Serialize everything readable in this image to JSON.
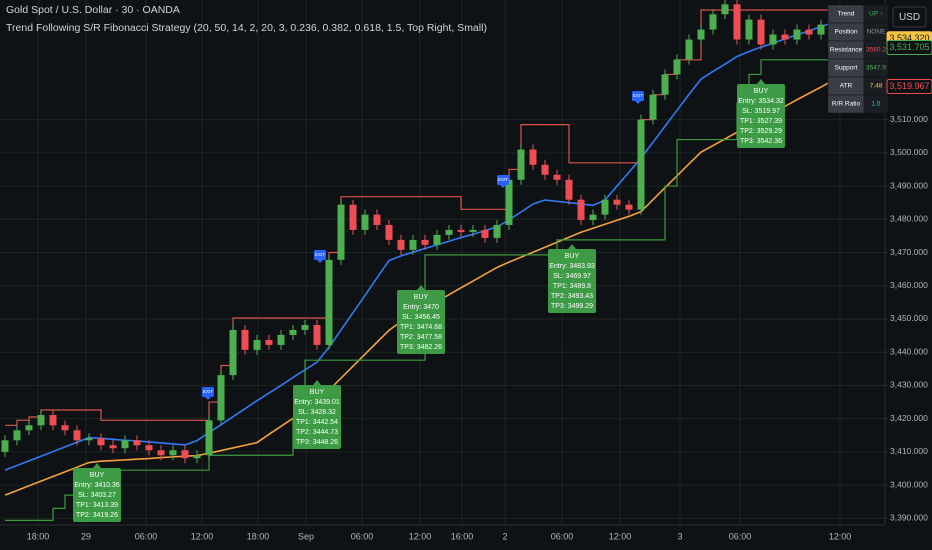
{
  "chart_data": {
    "type": "candlestick",
    "title": "Gold Spot / U.S. Dollar · 30 · OANDA",
    "subtitle": "Trend Following S/R Fibonacci Strategy (20, 50, 14, 2, 20, 3, 0.236, 0.382, 0.618, 1.5, Top Right, Small)",
    "currency": "USD",
    "grid": true,
    "up_color": "#4caf50",
    "down_color": "#ef4d56",
    "ylim": [
      3388,
      3546
    ],
    "yticks": [
      {
        "value": 3390,
        "label": "3,390.000"
      },
      {
        "value": 3400,
        "label": "3,400.000"
      },
      {
        "value": 3410,
        "label": "3,410.000"
      },
      {
        "value": 3420,
        "label": "3,420.000"
      },
      {
        "value": 3430,
        "label": "3,430.000"
      },
      {
        "value": 3440,
        "label": "3,440.000"
      },
      {
        "value": 3450,
        "label": "3,450.000"
      },
      {
        "value": 3460,
        "label": "3,460.000"
      },
      {
        "value": 3470,
        "label": "3,470.000"
      },
      {
        "value": 3480,
        "label": "3,480.000"
      },
      {
        "value": 3490,
        "label": "3,490.000"
      },
      {
        "value": 3500,
        "label": "3,500.000"
      },
      {
        "value": 3510,
        "label": "3,510.000"
      }
    ],
    "xticks": [
      {
        "value": 2.75,
        "label": "18:00"
      },
      {
        "value": 6.75,
        "label": "29"
      },
      {
        "value": 11.75,
        "label": "06:00"
      },
      {
        "value": 16.42,
        "label": "12:00"
      },
      {
        "value": 21.08,
        "label": "18:00"
      },
      {
        "value": 25.08,
        "label": "Sep"
      },
      {
        "value": 29.75,
        "label": "06:00"
      },
      {
        "value": 34.58,
        "label": "12:00"
      },
      {
        "value": 38.08,
        "label": "16:00"
      },
      {
        "value": 41.67,
        "label": "2"
      },
      {
        "value": 46.42,
        "label": "06:00"
      },
      {
        "value": 51.25,
        "label": "12:00"
      },
      {
        "value": 56.25,
        "label": "3"
      },
      {
        "value": 61.25,
        "label": "06:00"
      },
      {
        "value": 69.58,
        "label": "12:00"
      }
    ],
    "open": [
      3410.0,
      3413.5,
      3416.5,
      3418.0,
      3421.1,
      3418.0,
      3416.5,
      3413.5,
      3414.1,
      3412.0,
      3411.1,
      3413.5,
      3412.0,
      3410.5,
      3409.0,
      3410.5,
      3408.1,
      3409.0,
      3419.5,
      3433.1,
      3446.7,
      3440.7,
      3443.7,
      3442.2,
      3445.2,
      3446.7,
      3448.2,
      3442.2,
      3467.8,
      3484.4,
      3476.8,
      3481.4,
      3478.3,
      3473.8,
      3470.8,
      3473.8,
      3472.3,
      3475.3,
      3476.8,
      3476.2,
      3476.8,
      3474.4,
      3478.3,
      3491.9,
      3501.0,
      3496.4,
      3493.4,
      3491.9,
      3485.9,
      3479.8,
      3481.4,
      3485.9,
      3484.4,
      3482.9,
      3510.0,
      3517.5,
      3523.6,
      3528.1,
      3534.1,
      3537.1,
      3541.7,
      3544.7,
      3534.1,
      3540.1,
      3532.6,
      3535.6,
      3534.1,
      3537.1,
      3535.6,
      3538.6,
      3540.1,
      3537.1
    ],
    "high": [
      3415.0,
      3418.0,
      3419.5,
      3422.6,
      3422.6,
      3419.5,
      3418.0,
      3415.6,
      3415.6,
      3413.5,
      3415.0,
      3415.0,
      3413.5,
      3412.0,
      3412.0,
      3412.0,
      3410.5,
      3421.0,
      3434.6,
      3448.2,
      3448.2,
      3445.2,
      3445.2,
      3446.7,
      3448.2,
      3449.7,
      3449.7,
      3469.3,
      3485.9,
      3485.9,
      3482.9,
      3482.9,
      3479.8,
      3475.3,
      3475.3,
      3475.3,
      3476.8,
      3478.3,
      3478.3,
      3478.3,
      3478.3,
      3479.8,
      3493.4,
      3502.5,
      3502.5,
      3497.9,
      3494.9,
      3493.4,
      3487.4,
      3482.9,
      3487.4,
      3487.4,
      3485.9,
      3511.5,
      3519.0,
      3525.1,
      3529.6,
      3535.6,
      3538.6,
      3543.2,
      3546.0,
      3546.0,
      3541.6,
      3541.6,
      3537.1,
      3537.1,
      3538.6,
      3538.6,
      3540.1,
      3541.6,
      3541.6,
      3541.6
    ],
    "low": [
      3408.5,
      3412.0,
      3415.0,
      3416.5,
      3416.5,
      3415.0,
      3412.0,
      3412.0,
      3410.5,
      3409.6,
      3409.6,
      3410.5,
      3409.0,
      3407.5,
      3407.5,
      3406.6,
      3406.6,
      3407.5,
      3418.0,
      3431.6,
      3439.2,
      3439.2,
      3440.7,
      3440.7,
      3443.7,
      3445.2,
      3440.7,
      3440.7,
      3466.3,
      3475.3,
      3475.3,
      3476.8,
      3472.3,
      3469.3,
      3469.3,
      3470.8,
      3470.8,
      3473.8,
      3474.7,
      3474.7,
      3472.9,
      3472.9,
      3476.8,
      3490.4,
      3494.9,
      3491.9,
      3490.4,
      3484.4,
      3478.3,
      3478.3,
      3479.9,
      3482.9,
      3481.4,
      3481.4,
      3508.5,
      3516.0,
      3522.1,
      3526.6,
      3532.6,
      3535.6,
      3540.2,
      3532.6,
      3532.6,
      3531.1,
      3531.1,
      3532.6,
      3532.6,
      3534.1,
      3534.1,
      3537.1,
      3535.6,
      3535.6
    ],
    "close": [
      3413.5,
      3416.5,
      3418.0,
      3421.1,
      3418.0,
      3416.5,
      3413.5,
      3414.1,
      3412.0,
      3411.1,
      3413.5,
      3412.0,
      3410.5,
      3409.0,
      3410.5,
      3408.1,
      3409.0,
      3419.5,
      3433.1,
      3446.7,
      3440.7,
      3443.7,
      3442.2,
      3445.2,
      3446.7,
      3448.2,
      3442.2,
      3467.8,
      3484.4,
      3476.8,
      3481.4,
      3478.3,
      3473.8,
      3470.8,
      3473.8,
      3472.3,
      3475.3,
      3476.8,
      3476.2,
      3476.8,
      3474.4,
      3478.3,
      3491.9,
      3501.0,
      3496.4,
      3493.4,
      3491.9,
      3485.9,
      3479.8,
      3481.4,
      3485.9,
      3484.4,
      3482.9,
      3510.0,
      3517.5,
      3523.6,
      3528.1,
      3534.1,
      3537.1,
      3541.7,
      3544.7,
      3534.1,
      3540.1,
      3532.6,
      3535.6,
      3534.1,
      3537.1,
      3535.6,
      3538.6,
      3540.1,
      3537.1,
      3540.1
    ],
    "overlays": [
      {
        "color": "#2f7bf5",
        "values": [
          3404.5,
          3405.9,
          3407.3,
          3408.7,
          3410.1,
          3411.5,
          3412.9,
          3414.3,
          3414.1,
          3413.8,
          3413.5,
          3413.3,
          3413.0,
          3412.7,
          3412.4,
          3412.1,
          3413.4,
          3415.8,
          3418.2,
          3420.6,
          3423.0,
          3425.4,
          3427.7,
          3430.0,
          3432.4,
          3434.7,
          3437.0,
          3441.5,
          3446.7,
          3451.9,
          3457.1,
          3462.4,
          3467.6,
          3469.0,
          3470.1,
          3471.2,
          3472.3,
          3473.4,
          3474.5,
          3475.5,
          3476.6,
          3477.7,
          3479.8,
          3482.2,
          3484.6,
          3485.8,
          3485.4,
          3485.0,
          3484.6,
          3484.2,
          3485.8,
          3490.0,
          3494.2,
          3498.4,
          3503.2,
          3508.0,
          3512.8,
          3517.6,
          3522.2,
          3524.5,
          3526.7,
          3529.0,
          3530.5,
          3531.8,
          3533.0,
          3534.3,
          3535.5,
          3536.7,
          3538.0,
          3539.2,
          3540.5,
          3541.7
        ]
      },
      {
        "color": "#f5a13a",
        "values": [
          3397.0,
          3398.4,
          3399.8,
          3401.2,
          3402.6,
          3404.0,
          3405.4,
          3406.8,
          3407.2,
          3407.4,
          3407.6,
          3407.8,
          3408.0,
          3408.3,
          3408.5,
          3408.7,
          3408.9,
          3409.6,
          3410.4,
          3411.2,
          3412.0,
          3412.8,
          3415.3,
          3417.7,
          3420.1,
          3422.5,
          3424.9,
          3428.6,
          3432.2,
          3435.8,
          3439.4,
          3443.0,
          3446.6,
          3449.2,
          3451.2,
          3453.3,
          3455.3,
          3457.3,
          3459.4,
          3461.4,
          3463.5,
          3465.5,
          3467.1,
          3468.6,
          3470.1,
          3471.6,
          3473.1,
          3474.6,
          3476.1,
          3477.3,
          3478.5,
          3479.7,
          3480.9,
          3482.3,
          3485.9,
          3489.5,
          3493.1,
          3496.7,
          3500.2,
          3502.2,
          3504.2,
          3506.2,
          3508.2,
          3510.2,
          3512.1,
          3514.0,
          3516.0,
          3517.9,
          3519.8,
          3521.8,
          3523.7,
          3525.6
        ]
      },
      {
        "color": "#d9534f",
        "step": true,
        "values": [
          3418.0,
          3419.5,
          3420.5,
          3422.6,
          3422.6,
          3422.6,
          3422.6,
          3422.6,
          3419.5,
          3419.5,
          3419.5,
          3419.5,
          3419.5,
          3419.5,
          3419.5,
          3419.5,
          3419.5,
          3425.0,
          3436.0,
          3450.3,
          3450.3,
          3450.3,
          3450.3,
          3450.3,
          3450.3,
          3450.3,
          3450.3,
          3470.0,
          3486.8,
          3486.8,
          3486.8,
          3486.8,
          3486.8,
          3486.8,
          3486.8,
          3486.8,
          3486.8,
          3486.8,
          3483.0,
          3483.0,
          3483.0,
          3483.0,
          3495.0,
          3508.5,
          3508.5,
          3508.5,
          3508.5,
          3497.0,
          3497.0,
          3497.0,
          3497.0,
          3497.0,
          3497.0,
          3510.0,
          3517.5,
          3523.6,
          3528.0,
          3528.0,
          3543.0,
          3543.0,
          3543.0,
          3543.0,
          3543.0,
          3543.0,
          3543.0,
          3543.0,
          3543.0,
          3543.0,
          3543.0,
          3543.0,
          3543.0,
          3543.0
        ]
      },
      {
        "color": "#3f9a3f",
        "step": true,
        "values": [
          3389.4,
          3389.4,
          3389.4,
          3389.4,
          3393.0,
          3397.0,
          3400.0,
          3404.5,
          3404.5,
          3404.5,
          3404.5,
          3404.5,
          3404.5,
          3404.5,
          3404.5,
          3404.5,
          3404.5,
          3409.0,
          3409.0,
          3409.0,
          3409.0,
          3409.0,
          3409.0,
          3409.0,
          3420.0,
          3437.6,
          3437.6,
          3437.6,
          3437.6,
          3437.6,
          3437.6,
          3437.6,
          3437.6,
          3437.6,
          3437.6,
          3469.3,
          3469.3,
          3469.3,
          3469.3,
          3469.3,
          3469.3,
          3469.3,
          3469.3,
          3469.3,
          3469.3,
          3469.3,
          3473.8,
          3473.8,
          3473.8,
          3473.8,
          3473.8,
          3473.8,
          3473.8,
          3473.8,
          3473.8,
          3490.0,
          3504.0,
          3504.0,
          3504.0,
          3504.0,
          3504.0,
          3515.0,
          3523.6,
          3528.0,
          3528.0,
          3528.0,
          3528.0,
          3528.0,
          3528.0,
          3528.0,
          3528.0,
          3528.0
        ]
      }
    ],
    "annotations": [
      {
        "lines": [
          "BUY",
          "Entry: 3410.36",
          "SL: 3403.27",
          "TP1: 3413.39",
          "TP2: 3419.26"
        ]
      },
      {
        "lines": [
          "BUY",
          "Entry: 3439.01",
          "SL: 3428.32",
          "TP1: 3442.54",
          "TP2: 3444.73",
          "TP3: 3448.26"
        ]
      },
      {
        "lines": [
          "BUY",
          "Entry: 3470",
          "SL: 3456.45",
          "TP1: 3474.68",
          "TP2: 3477.58",
          "TP3: 3482.26"
        ]
      },
      {
        "lines": [
          "BUY",
          "Entry: 3483.93",
          "SL: 3469.97",
          "TP1: 3489.8",
          "TP2: 3493.43",
          "TP3: 3499.29"
        ]
      },
      {
        "lines": [
          "BUY",
          "Entry: 3534.32",
          "SL: 3519.97",
          "TP1: 3527.39",
          "TP2: 3529.29",
          "TP3: 3542.36"
        ]
      }
    ],
    "exit_labels": [
      "EXIT",
      "EXIT",
      "EXIT",
      "EXIT"
    ],
    "info_table": {
      "rows": [
        [
          "Trend",
          "UP ↑"
        ],
        [
          "Position",
          "NONE"
        ],
        [
          "Resistance",
          "3560.2"
        ],
        [
          "Support",
          "3547.9"
        ],
        [
          "ATR",
          "7.48"
        ],
        [
          "R/R Ratio",
          "1.5"
        ]
      ],
      "value_colors": [
        "#4caf50",
        "#8a8f98",
        "#ef4d56",
        "#4caf50",
        "#f5c542",
        "#26c6da"
      ]
    },
    "price_labels": [
      {
        "value": 3534.32,
        "label": "3,534.320",
        "color": "#f5c542",
        "filled": true
      },
      {
        "value": 3531.705,
        "label": "3,531.705",
        "color": "#4caf50",
        "filled": false
      },
      {
        "value": 3519.967,
        "label": "3,519.967",
        "color": "#ef4d56",
        "filled": false
      }
    ]
  }
}
